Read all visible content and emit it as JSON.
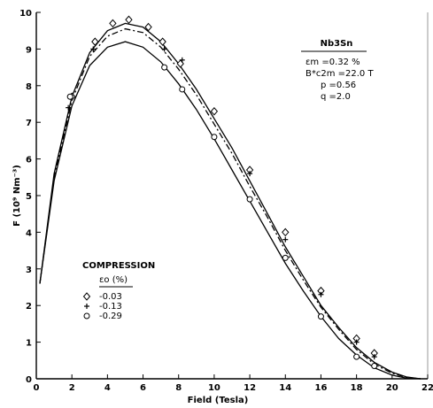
{
  "chart_data": {
    "type": "line",
    "title": "",
    "xlabel": "Field  (Tesla)",
    "ylabel": "F (10⁹ Nm⁻³)",
    "xlim": [
      0,
      22
    ],
    "ylim": [
      0,
      10
    ],
    "x_ticks": [
      "0",
      "2",
      "4",
      "6",
      "8",
      "10",
      "12",
      "14",
      "16",
      "18",
      "20",
      "22"
    ],
    "y_ticks": [
      "0",
      "1",
      "2",
      "3",
      "4",
      "5",
      "6",
      "7",
      "8",
      "9",
      "10"
    ],
    "grid": false,
    "series": [
      {
        "name": "-0.03",
        "marker": "diamond",
        "style": "solid",
        "points": [
          [
            2,
            7.7
          ],
          [
            3.3,
            9.2
          ],
          [
            4.3,
            9.7
          ],
          [
            5.2,
            9.8
          ],
          [
            6.3,
            9.6
          ],
          [
            7.1,
            9.2
          ],
          [
            8.1,
            8.6
          ],
          [
            10,
            7.3
          ],
          [
            12,
            5.7
          ],
          [
            14,
            4.0
          ],
          [
            16,
            2.4
          ],
          [
            18,
            1.1
          ],
          [
            19,
            0.7
          ]
        ],
        "curve": [
          [
            0.2,
            2.6
          ],
          [
            1,
            5.6
          ],
          [
            2,
            7.7
          ],
          [
            3,
            8.9
          ],
          [
            4,
            9.5
          ],
          [
            5,
            9.7
          ],
          [
            6,
            9.6
          ],
          [
            7,
            9.2
          ],
          [
            8,
            8.6
          ],
          [
            9,
            7.9
          ],
          [
            10,
            7.1
          ],
          [
            11,
            6.3
          ],
          [
            12,
            5.4
          ],
          [
            13,
            4.5
          ],
          [
            14,
            3.6
          ],
          [
            15,
            2.8
          ],
          [
            16,
            2.0
          ],
          [
            17,
            1.4
          ],
          [
            18,
            0.85
          ],
          [
            19,
            0.45
          ],
          [
            20,
            0.18
          ],
          [
            20.8,
            0.05
          ],
          [
            21.6,
            0.0
          ]
        ]
      },
      {
        "name": "-0.13",
        "marker": "plus",
        "style": "dash-dot",
        "points": [
          [
            1.8,
            7.4
          ],
          [
            3.2,
            9.0
          ],
          [
            7.2,
            9.0
          ],
          [
            8.2,
            8.7
          ],
          [
            12,
            5.6
          ],
          [
            14,
            3.8
          ],
          [
            16,
            2.3
          ],
          [
            18,
            1.0
          ],
          [
            19,
            0.6
          ]
        ],
        "curve": [
          [
            0.2,
            2.6
          ],
          [
            1,
            5.5
          ],
          [
            2,
            7.6
          ],
          [
            3,
            8.8
          ],
          [
            4,
            9.35
          ],
          [
            5,
            9.55
          ],
          [
            6,
            9.45
          ],
          [
            7,
            9.05
          ],
          [
            8,
            8.45
          ],
          [
            9,
            7.75
          ],
          [
            10,
            6.95
          ],
          [
            11,
            6.15
          ],
          [
            12,
            5.25
          ],
          [
            13,
            4.4
          ],
          [
            14,
            3.5
          ],
          [
            15,
            2.7
          ],
          [
            16,
            1.95
          ],
          [
            17,
            1.35
          ],
          [
            18,
            0.8
          ],
          [
            19,
            0.4
          ],
          [
            20,
            0.15
          ],
          [
            20.8,
            0.04
          ],
          [
            21.6,
            0.0
          ]
        ]
      },
      {
        "name": "-0.29",
        "marker": "circle",
        "style": "solid",
        "points": [
          [
            1.9,
            7.7
          ],
          [
            7.2,
            8.5
          ],
          [
            8.2,
            7.9
          ],
          [
            10,
            6.6
          ],
          [
            12,
            4.9
          ],
          [
            14,
            3.3
          ],
          [
            16,
            1.7
          ],
          [
            18,
            0.6
          ],
          [
            19,
            0.35
          ]
        ],
        "curve": [
          [
            0.2,
            2.6
          ],
          [
            1,
            5.4
          ],
          [
            2,
            7.45
          ],
          [
            3,
            8.55
          ],
          [
            4,
            9.05
          ],
          [
            5,
            9.2
          ],
          [
            6,
            9.05
          ],
          [
            7,
            8.65
          ],
          [
            8,
            8.05
          ],
          [
            9,
            7.35
          ],
          [
            10,
            6.55
          ],
          [
            11,
            5.7
          ],
          [
            12,
            4.85
          ],
          [
            13,
            4.0
          ],
          [
            14,
            3.15
          ],
          [
            15,
            2.4
          ],
          [
            16,
            1.7
          ],
          [
            17,
            1.1
          ],
          [
            18,
            0.65
          ],
          [
            19,
            0.3
          ],
          [
            20,
            0.1
          ],
          [
            20.8,
            0.02
          ],
          [
            21.6,
            0.0
          ]
        ]
      }
    ],
    "annotation": {
      "material": "Nb3Sn",
      "params": [
        "εm =0.32 %",
        "B*c2m =22.0 T",
        "p =0.56",
        "q =2.0"
      ],
      "legend_title": "COMPRESSION",
      "legend_subtitle": "εo (%)"
    }
  }
}
